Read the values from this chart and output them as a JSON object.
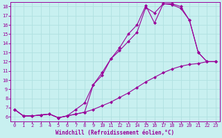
{
  "xlabel": "Windchill (Refroidissement éolien,°C)",
  "bg_color": "#c8f0f0",
  "line_color": "#990099",
  "grid_color": "#b0e0e0",
  "xlim": [
    -0.5,
    23.5
  ],
  "ylim": [
    5.5,
    18.5
  ],
  "xticks": [
    0,
    1,
    2,
    3,
    4,
    5,
    6,
    7,
    8,
    9,
    10,
    11,
    12,
    13,
    14,
    15,
    16,
    17,
    18,
    19,
    20,
    21,
    22,
    23
  ],
  "yticks": [
    6,
    7,
    8,
    9,
    10,
    11,
    12,
    13,
    14,
    15,
    16,
    17,
    18
  ],
  "line1_x": [
    0,
    1,
    2,
    3,
    4,
    5,
    6,
    7,
    8,
    9,
    10,
    11,
    12,
    13,
    14,
    15,
    16,
    17,
    18,
    19,
    20,
    21,
    22,
    23
  ],
  "line1_y": [
    6.8,
    6.1,
    6.1,
    6.2,
    6.3,
    5.9,
    6.1,
    6.3,
    6.5,
    6.8,
    7.2,
    7.6,
    8.1,
    8.6,
    9.2,
    9.8,
    10.3,
    10.8,
    11.2,
    11.5,
    11.7,
    11.8,
    12.0,
    12.0
  ],
  "line2_x": [
    0,
    1,
    2,
    3,
    4,
    5,
    6,
    7,
    8,
    9,
    10,
    11,
    12,
    13,
    14,
    15,
    16,
    17,
    18,
    19,
    20,
    21,
    22,
    23
  ],
  "line2_y": [
    6.8,
    6.1,
    6.1,
    6.2,
    6.3,
    5.9,
    6.1,
    6.3,
    6.5,
    9.5,
    10.5,
    12.3,
    13.2,
    14.2,
    15.2,
    17.9,
    17.3,
    18.3,
    18.3,
    18.0,
    16.5,
    13.0,
    12.0,
    12.0
  ],
  "line3_x": [
    0,
    1,
    2,
    3,
    4,
    5,
    6,
    7,
    8,
    9,
    10,
    11,
    12,
    13,
    14,
    15,
    16,
    17,
    18,
    19,
    20,
    21,
    22,
    23
  ],
  "line3_y": [
    6.8,
    6.1,
    6.1,
    6.2,
    6.3,
    5.9,
    6.1,
    6.8,
    7.5,
    9.5,
    10.8,
    12.3,
    13.5,
    15.0,
    16.0,
    18.1,
    16.2,
    18.3,
    18.2,
    17.8,
    16.5,
    13.0,
    12.0,
    12.0
  ],
  "xlabel_fontsize": 5.5,
  "tick_fontsize": 5.0
}
